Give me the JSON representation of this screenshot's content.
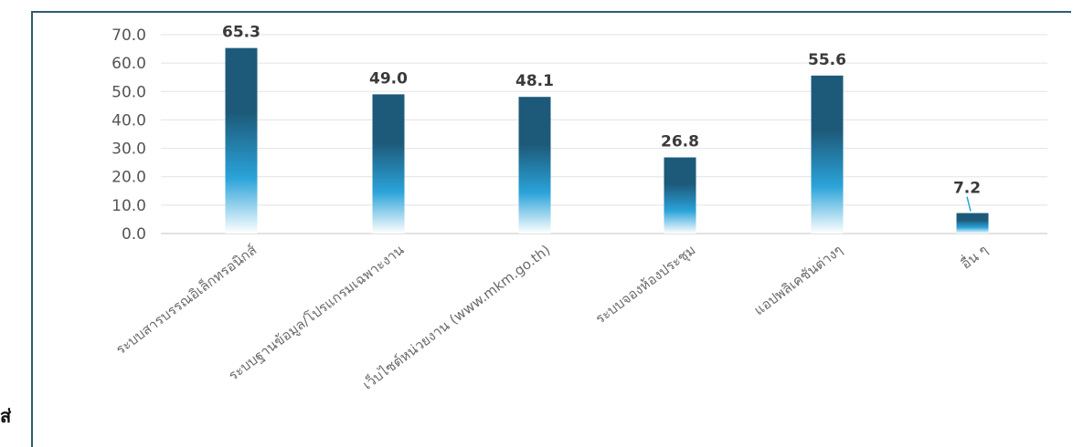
{
  "stray_text": "ส่",
  "colors": {
    "frame": "#2f5d6e",
    "bar_top": "#1d5a7a",
    "bar_mid": "#2aa3d9",
    "bar_bottom": "#ffffff",
    "leader": "#2aa3d9"
  },
  "chart_data": {
    "type": "bar",
    "categories": [
      "ระบบสารบรรณอิเล็กทรอนิกส์",
      "ระบบฐานข้อมูล/โปรแกรมเฉพาะงาน",
      "เว็บไซต์หน่วยงาน (www.mkm.go.th)",
      "ระบบจองห้องประชุม",
      "แอปพลิเคชันต่างๆ",
      "อื่น ๆ"
    ],
    "values": [
      65.3,
      49.0,
      48.1,
      26.8,
      55.6,
      7.2
    ],
    "value_labels": [
      "65.3",
      "49.0",
      "48.1",
      "26.8",
      "55.6",
      "7.2"
    ],
    "y_ticks": [
      "0.0",
      "10.0",
      "20.0",
      "30.0",
      "40.0",
      "50.0",
      "60.0",
      "70.0"
    ],
    "ylim": [
      0,
      70
    ],
    "grid": true,
    "legend": "none",
    "title": "",
    "xlabel": "",
    "ylabel": ""
  }
}
